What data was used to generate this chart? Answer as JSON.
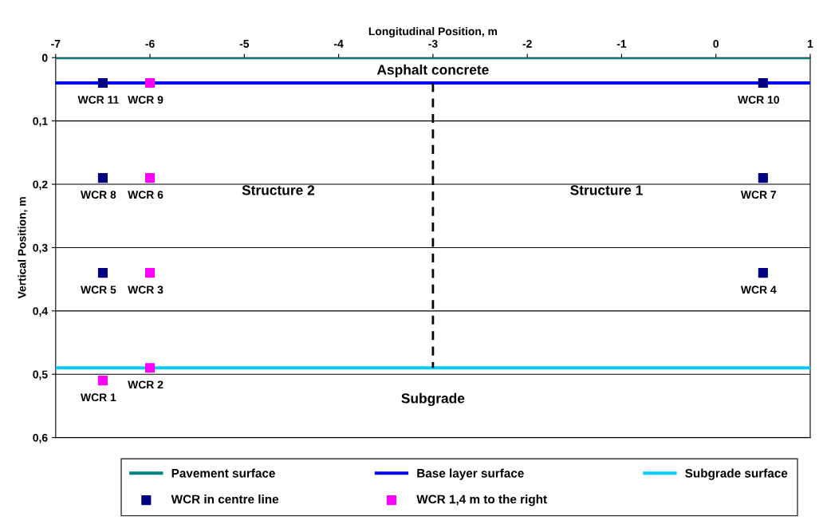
{
  "chart_data": {
    "type": "line",
    "xlabel": "Longitudinal Position, m",
    "ylabel": "Vertical Position, m",
    "xlim": [
      -7,
      1
    ],
    "xticks": [
      -7,
      -6,
      -5,
      -4,
      -3,
      -2,
      -1,
      0,
      1
    ],
    "ylim": [
      0.6,
      0
    ],
    "yticks": [
      0,
      {
        "value": 0.1,
        "label": "0,1"
      },
      {
        "value": 0.2,
        "label": "0,2"
      },
      {
        "value": 0.3,
        "label": "0,3"
      },
      {
        "value": 0.4,
        "label": "0,4"
      },
      {
        "value": 0.5,
        "label": "0,5"
      },
      {
        "value": 0.6,
        "label": "0,6"
      }
    ],
    "grid": "y",
    "legend": "bottom",
    "series": [
      {
        "name": "Pavement surface",
        "color": "#008080",
        "x": [
          -7,
          1
        ],
        "values": [
          0,
          0
        ]
      },
      {
        "name": "Base layer surface",
        "color": "#0000ff",
        "x": [
          -7,
          1
        ],
        "values": [
          0.04,
          0.04
        ]
      },
      {
        "name": "Subgrade surface",
        "color": "#00ccff",
        "x": [
          -7,
          1
        ],
        "values": [
          0.49,
          0.49
        ]
      },
      {
        "name": "WCR in centre line",
        "type": "scatter",
        "marker": "square",
        "color": "#000080",
        "x": [
          -6.5,
          0.5,
          -6.5,
          0.5,
          -6.5,
          0.5
        ],
        "values": [
          0.04,
          0.04,
          0.19,
          0.19,
          0.34,
          0.34
        ]
      },
      {
        "name": "WCR 1,4 m to the right",
        "type": "scatter",
        "marker": "square",
        "color": "#ff00ff",
        "x": [
          -6,
          -6,
          -6,
          -6,
          -6.5
        ],
        "values": [
          0.04,
          0.19,
          0.34,
          0.49,
          0.51
        ]
      },
      {
        "line_style": "dashed",
        "color": "#000000",
        "x": [
          -3,
          -3
        ],
        "values": [
          0.04,
          0.49
        ]
      }
    ],
    "annotations": [
      {
        "text": "WCR 11",
        "x": -6.5,
        "y": 0.04
      },
      {
        "text": "WCR 9",
        "x": -6,
        "y": 0.04
      },
      {
        "text": "WCR 10",
        "x": 0.5,
        "y": 0.04
      },
      {
        "text": "WCR 8",
        "x": -6.5,
        "y": 0.19
      },
      {
        "text": "WCR 6",
        "x": -6,
        "y": 0.19
      },
      {
        "text": "WCR 7",
        "x": 0.5,
        "y": 0.19
      },
      {
        "text": "WCR 5",
        "x": -6.5,
        "y": 0.34
      },
      {
        "text": "WCR 3",
        "x": -6,
        "y": 0.34
      },
      {
        "text": "WCR 4",
        "x": 0.5,
        "y": 0.34
      },
      {
        "text": "WCR 1",
        "x": -6.5,
        "y": 0.51
      },
      {
        "text": "WCR 2",
        "x": -6,
        "y": 0.49
      },
      "Asphalt concrete",
      "Structure 2",
      "Structure 1",
      "Subgrade"
    ]
  }
}
